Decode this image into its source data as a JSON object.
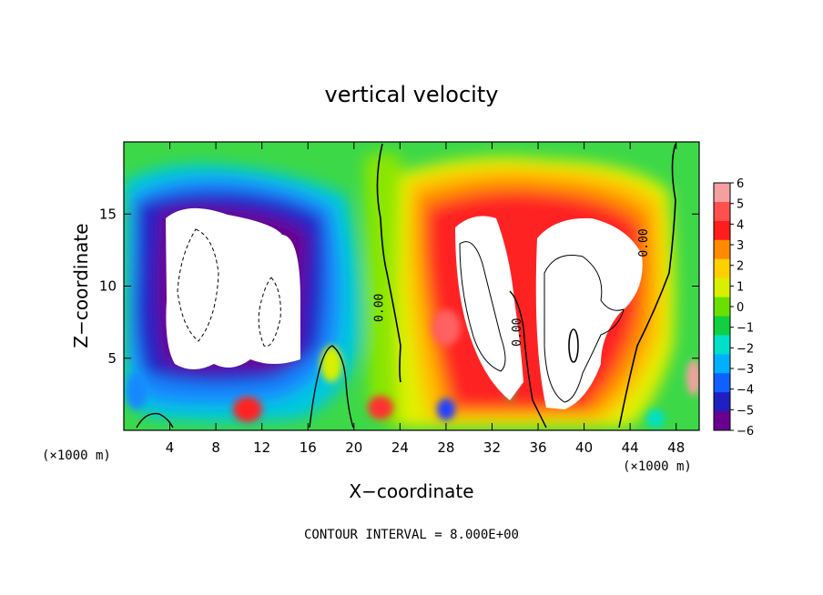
{
  "chart_data": {
    "type": "heatmap",
    "title": "vertical velocity",
    "xlabel": "X−coordinate",
    "ylabel": "Z−coordinate",
    "x_unit_label": "(×1000 m)",
    "y_unit_label": "(×1000 m)",
    "footer": "CONTOUR INTERVAL = 8.000E+00",
    "xlim": [
      0,
      50
    ],
    "ylim": [
      0,
      20
    ],
    "x_ticks": [
      4,
      8,
      12,
      16,
      20,
      24,
      28,
      32,
      36,
      40,
      44,
      48
    ],
    "y_ticks": [
      5,
      10,
      15
    ],
    "colorbar": {
      "levels": [
        6,
        5,
        4,
        3,
        2,
        1,
        0,
        -1,
        -2,
        -3,
        -4,
        -5,
        -6
      ],
      "labels": [
        "6",
        "5",
        "4",
        "3",
        "2",
        "1",
        "0",
        "−1",
        "−2",
        "−3",
        "−4",
        "−5",
        "−6"
      ],
      "colors": [
        "#f5a0a0",
        "#ff5050",
        "#ff1c1c",
        "#ff8a00",
        "#ffd000",
        "#d8f000",
        "#6ae000",
        "#10d040",
        "#00e0c8",
        "#00b0ff",
        "#1060ff",
        "#2020c0",
        "#6a0090"
      ]
    },
    "contour_labels": [
      {
        "text": "0.00",
        "x": 22.5,
        "y": 8.5
      },
      {
        "text": "0.00",
        "x": 34.5,
        "y": 6.8
      },
      {
        "text": "0.00",
        "x": 45.5,
        "y": 13.0
      }
    ],
    "features": [
      {
        "kind": "downdraft",
        "x": 12,
        "z": 10,
        "w_max": -24
      },
      {
        "kind": "updraft",
        "x": 30,
        "z": 10,
        "w_max": 16
      },
      {
        "kind": "updraft",
        "x": 40,
        "z": 9,
        "w_max": 24
      }
    ]
  }
}
